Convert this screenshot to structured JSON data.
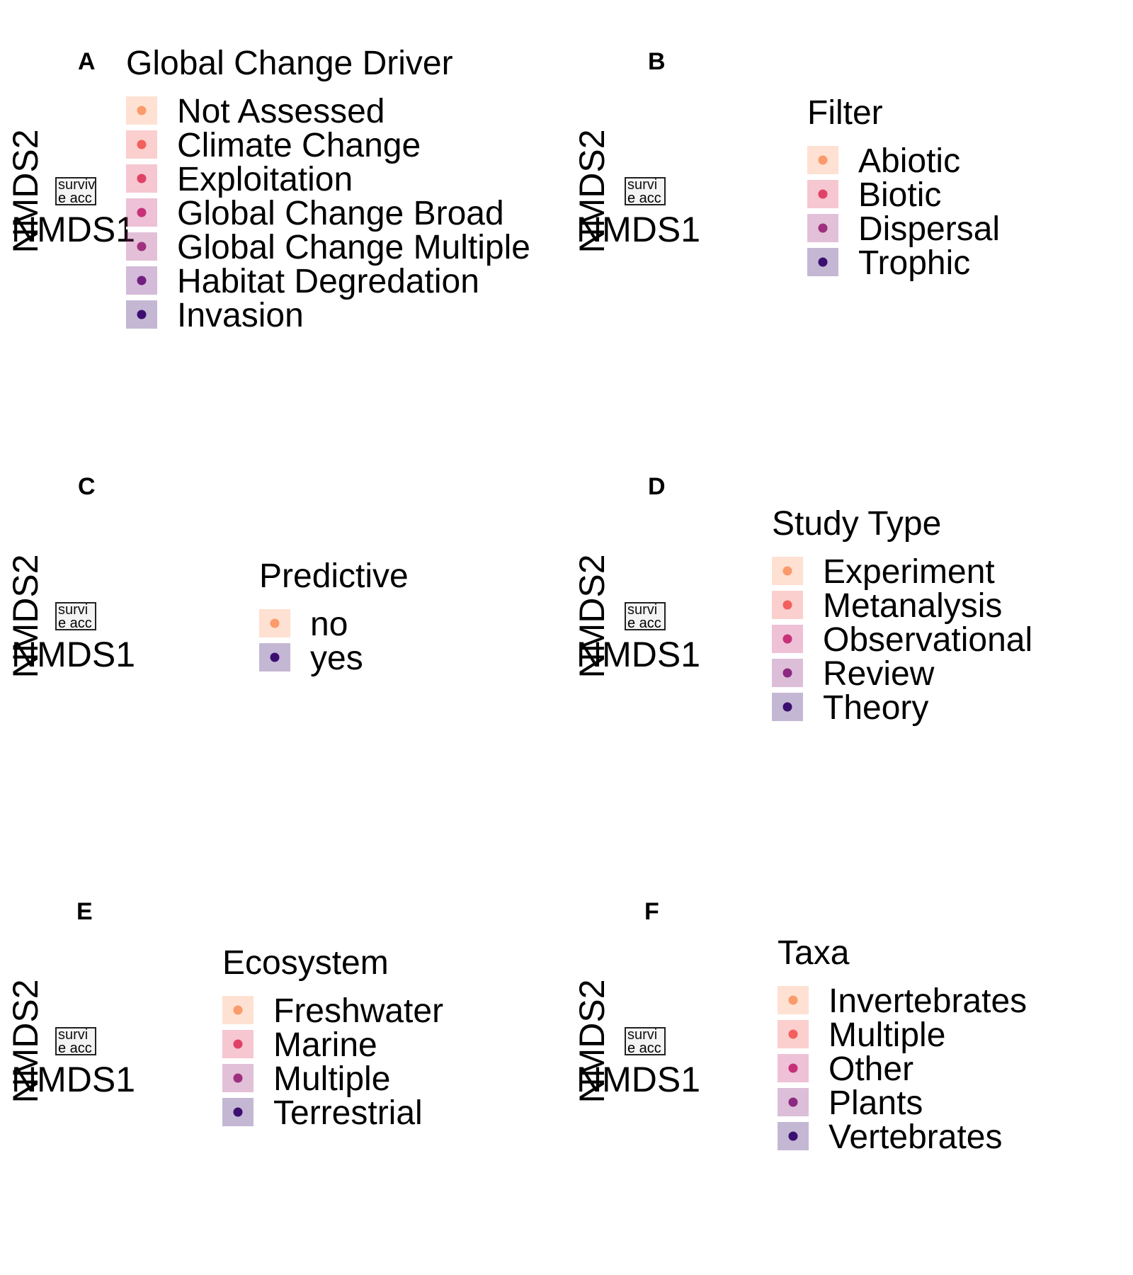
{
  "chart_data": [
    {
      "panel": "A",
      "type": "scatter",
      "xlabel": "NMDS1",
      "ylabel": "NMDS2",
      "inset_text": [
        "surviv",
        "e acc"
      ],
      "legend": {
        "title": "Global Change Driver",
        "entries": [
          "Not Assessed",
          "Climate Change",
          "Exploitation",
          "Global Change Broad",
          "Global Change Multiple",
          "Habitat Degredation",
          "Invasion"
        ],
        "colors": [
          "#FB9A6A",
          "#F1605D",
          "#E04266",
          "#C63179",
          "#A1307E",
          "#721F81",
          "#3B0F70"
        ]
      }
    },
    {
      "panel": "B",
      "type": "scatter",
      "xlabel": "NMDS1",
      "ylabel": "NMDS2",
      "inset_text": [
        "survi",
        "e acc"
      ],
      "legend": {
        "title": "Filter",
        "entries": [
          "Abiotic",
          "Biotic",
          "Dispersal",
          "Trophic"
        ],
        "colors": [
          "#FB9A6A",
          "#E04266",
          "#9F2F7F",
          "#3B0F70"
        ]
      }
    },
    {
      "panel": "C",
      "type": "scatter",
      "xlabel": "NMDS1",
      "ylabel": "NMDS2",
      "inset_text": [
        "survi",
        "e acc"
      ],
      "legend": {
        "title": "Predictive",
        "entries": [
          "no",
          "yes"
        ],
        "colors": [
          "#FB9A6A",
          "#3B0F70"
        ]
      }
    },
    {
      "panel": "D",
      "type": "scatter",
      "xlabel": "NMDS1",
      "ylabel": "NMDS2",
      "inset_text": [
        "survi",
        "e acc"
      ],
      "legend": {
        "title": "Study Type",
        "entries": [
          "Experiment",
          "Metanalysis",
          "Observational",
          "Review",
          "Theory"
        ],
        "colors": [
          "#FB9A6A",
          "#F1605D",
          "#C63179",
          "#8C2981",
          "#3B0F70"
        ]
      }
    },
    {
      "panel": "E",
      "type": "scatter",
      "xlabel": "NMDS1",
      "ylabel": "NMDS2",
      "inset_text": [
        "survi",
        "e acc"
      ],
      "legend": {
        "title": "Ecosystem",
        "entries": [
          "Freshwater",
          "Marine",
          "Multiple",
          "Terrestrial"
        ],
        "colors": [
          "#FB9A6A",
          "#E04266",
          "#9F2F7F",
          "#3B0F70"
        ]
      }
    },
    {
      "panel": "F",
      "type": "scatter",
      "xlabel": "NMDS1",
      "ylabel": "NMDS2",
      "inset_text": [
        "survi",
        "e acc"
      ],
      "legend": {
        "title": "Taxa",
        "entries": [
          "Invertebrates",
          "Multiple",
          "Other",
          "Plants",
          "Vertebrates"
        ],
        "colors": [
          "#FB9A6A",
          "#F1605D",
          "#C63179",
          "#8C2981",
          "#3B0F70"
        ]
      }
    }
  ]
}
